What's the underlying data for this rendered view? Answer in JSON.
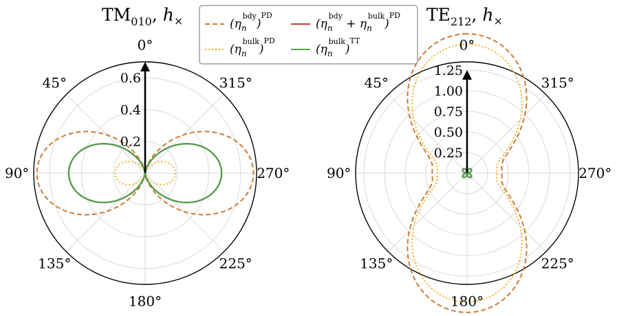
{
  "chart_data": [
    {
      "type": "polar-line",
      "title": "TM010, h×",
      "title_main": "TM",
      "title_sub": "010",
      "title_pol": "h",
      "title_mark": "×",
      "rlim": [
        0,
        0.7
      ],
      "rticks": [
        0.2,
        0.4,
        0.6
      ],
      "rtick_labels": [
        "0.2",
        "0.4",
        "0.6"
      ],
      "angle_labels": [
        "0°",
        "45°",
        "90°",
        "135°",
        "180°",
        "225°",
        "270°",
        "315°"
      ],
      "arrow": {
        "theta_deg": 0,
        "r": 0.7
      },
      "pattern": "sin2",
      "series": [
        {
          "name": "bdy PD",
          "peak": 0.68
        },
        {
          "name": "bulk PD",
          "peak": 0.19
        },
        {
          "name": "bdy + bulk PD",
          "peak": 0.48
        },
        {
          "name": "bulk TT",
          "peak": 0.48
        }
      ]
    },
    {
      "type": "polar-line",
      "title": "TE212, h×",
      "title_main": "TE",
      "title_sub": "212",
      "title_pol": "h",
      "title_mark": "×",
      "rlim": [
        0,
        1.35
      ],
      "rticks": [
        0.25,
        0.5,
        0.75,
        1.0,
        1.25
      ],
      "rtick_labels": [
        "0.25",
        "0.50",
        "0.75",
        "1.00",
        "1.25"
      ],
      "angle_labels": [
        "0°",
        "45°",
        "90°",
        "135°",
        "180°",
        "225°",
        "270°",
        "315°"
      ],
      "arrow": {
        "theta_deg": 0,
        "r": 1.25
      },
      "pattern": "mixed",
      "series": [
        {
          "name": "bdy PD",
          "mixed": [
            1.3,
            0.65
          ]
        },
        {
          "name": "bulk PD",
          "mixed": [
            1.25,
            0.6
          ]
        },
        {
          "name": "bdy + bulk PD",
          "peak": 0.07
        },
        {
          "name": "bulk TT",
          "peak": 0.07
        }
      ]
    }
  ],
  "legend": {
    "entries": [
      {
        "base": "(η",
        "sub": "n",
        "sup_a": "bdy",
        "plus": "",
        "sup_b": "",
        "close": ")",
        "outer": "PD",
        "color": "#cc7a33",
        "dash": "7,4"
      },
      {
        "base": "(η",
        "sub": "n",
        "sup_a": "bulk",
        "plus": "",
        "sup_b": "",
        "close": ")",
        "outer": "PD",
        "color": "#f2ad1a",
        "dash": "2,3"
      },
      {
        "base": "(η",
        "sub": "n",
        "sup_a": "bdy",
        "plus": " + η",
        "sup_b": "bulk",
        "close": ")",
        "outer": "PD",
        "color": "#c83c3c",
        "dash": ""
      },
      {
        "base": "(η",
        "sub": "n",
        "sup_a": "bulk",
        "plus": "",
        "sup_b": "",
        "close": ")",
        "outer": "TT",
        "color": "#4ea04a",
        "dash": ""
      }
    ]
  }
}
